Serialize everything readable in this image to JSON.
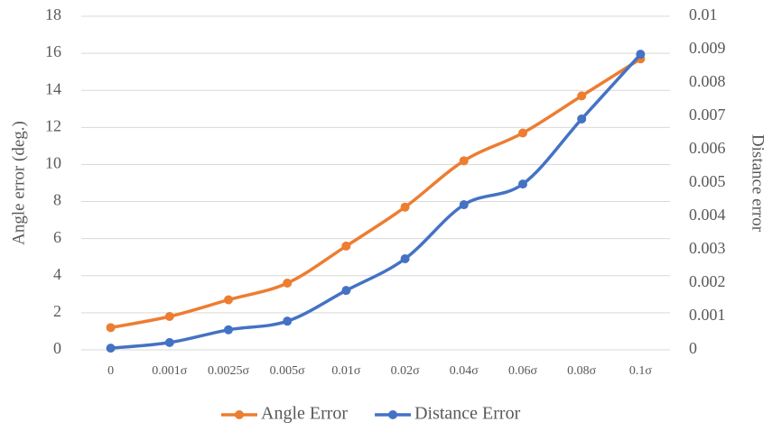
{
  "chart_data": {
    "type": "line",
    "ylabel": "Angle error (deg.)",
    "y2label": "Distance error",
    "categories": [
      "0",
      "0.001σ",
      "0.0025σ",
      "0.005σ",
      "0.01σ",
      "0.02σ",
      "0.04σ",
      "0.06σ",
      "0.08σ",
      "0.1σ"
    ],
    "series": [
      {
        "name": "Angle Error",
        "color": "#ed7d31",
        "values": [
          1.2,
          1.8,
          2.7,
          3.6,
          5.6,
          7.7,
          10.2,
          11.7,
          13.7,
          15.7
        ]
      },
      {
        "name": "Distance Error",
        "color": "#4472c4",
        "axis": "y2",
        "values": [
          5e-05,
          0.00022,
          0.0006,
          0.00086,
          0.00178,
          0.00273,
          0.00435,
          0.00497,
          0.00692,
          0.00886
        ]
      }
    ],
    "ylim": [
      0,
      18
    ],
    "yticks": [
      0,
      2,
      4,
      6,
      8,
      10,
      12,
      14,
      16,
      18
    ],
    "y2lim": [
      0,
      0.01
    ],
    "y2ticks": [
      0,
      0.001,
      0.002,
      0.003,
      0.004,
      0.005,
      0.006,
      0.007,
      0.008,
      0.009,
      0.01
    ],
    "grid": true,
    "legend": "bottom"
  }
}
